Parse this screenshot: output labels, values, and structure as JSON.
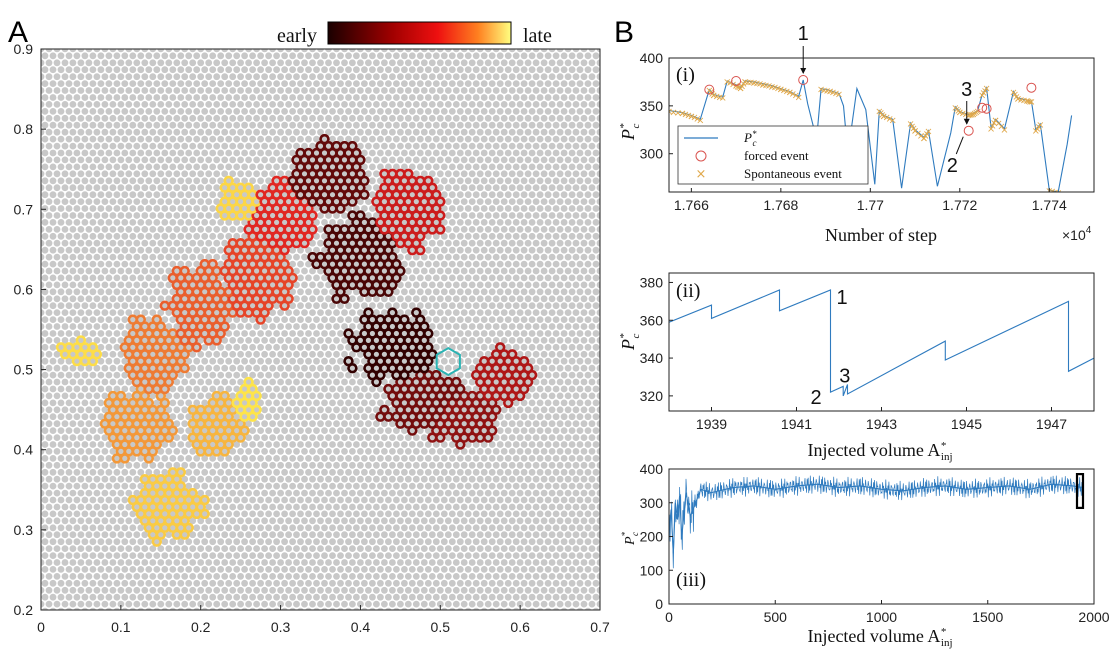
{
  "colors": {
    "grain": "#c8c8c8",
    "line": "#2f7bbf",
    "forced": "#d9534f",
    "spontaneous": "#e0a84a",
    "highlight_hex": "#2ab3b3",
    "cluster_early": "#2a0000",
    "cluster_mid": "#e02020",
    "cluster_late": "#ffe84a"
  },
  "panel_a": {
    "letter": "A",
    "colorbar": {
      "left_label": "early",
      "right_label": "late"
    },
    "x_ticks": [
      "0",
      "0.1",
      "0.2",
      "0.3",
      "0.4",
      "0.5",
      "0.6",
      "0.7"
    ],
    "y_ticks": [
      "0.2",
      "0.3",
      "0.4",
      "0.5",
      "0.6",
      "0.7",
      "0.8",
      "0.9"
    ],
    "xlim": [
      0,
      0.7
    ],
    "ylim": [
      0.2,
      0.9
    ],
    "grid_pitch": 0.01,
    "highlight_center": [
      0.51,
      0.51
    ],
    "highlight_radius": 0.012
  },
  "panel_b": {
    "letter": "B",
    "sub_i": {
      "label": "(i)",
      "ylabel": "P",
      "ylabel_sup": "*",
      "ylabel_sub": "c",
      "xlabel": "Number of step",
      "x_exponent_base": "×10",
      "x_exponent_power": "4",
      "x_ticks": [
        "1.766",
        "1.768",
        "1.77",
        "1.772",
        "1.774"
      ],
      "y_ticks": [
        "300",
        "350",
        "400"
      ],
      "annotations": [
        "1",
        "2",
        "3"
      ],
      "legend": {
        "line": "P",
        "line_sup": "*",
        "line_sub": "c",
        "forced": "forced event",
        "spontaneous": "Spontaneous event"
      }
    },
    "sub_ii": {
      "label": "(ii)",
      "ylabel": "P",
      "ylabel_sup": "*",
      "ylabel_sub": "c",
      "xlabel": "Injected volume A",
      "xlabel_sup": "*",
      "xlabel_sub": "inj",
      "x_ticks": [
        "1939",
        "1941",
        "1943",
        "1945",
        "1947"
      ],
      "y_ticks": [
        "320",
        "340",
        "360",
        "380"
      ],
      "annotations": [
        "1",
        "2",
        "3"
      ]
    },
    "sub_iii": {
      "label": "(iii)",
      "ylabel": "P",
      "ylabel_sup": "*",
      "ylabel_sub": "c",
      "xlabel": "Injected volume A",
      "xlabel_sup": "*",
      "xlabel_sub": "inj",
      "x_ticks": [
        "0",
        "500",
        "1000",
        "1500",
        "2000"
      ],
      "y_ticks": [
        "0",
        "100",
        "200",
        "300",
        "400"
      ]
    }
  },
  "chart_data": [
    {
      "type": "scatter",
      "panel": "A",
      "xlim": [
        0,
        0.7
      ],
      "ylim": [
        0.2,
        0.9
      ],
      "clusters": [
        {
          "order": 0.02,
          "center": [
            0.44,
            0.53
          ],
          "rx": 0.06,
          "ry": 0.05
        },
        {
          "order": 0.08,
          "center": [
            0.4,
            0.64
          ],
          "rx": 0.06,
          "ry": 0.06
        },
        {
          "order": 0.14,
          "center": [
            0.36,
            0.74
          ],
          "rx": 0.06,
          "ry": 0.05
        },
        {
          "order": 0.18,
          "center": [
            0.48,
            0.46
          ],
          "rx": 0.06,
          "ry": 0.04
        },
        {
          "order": 0.25,
          "center": [
            0.53,
            0.44
          ],
          "rx": 0.05,
          "ry": 0.04
        },
        {
          "order": 0.33,
          "center": [
            0.58,
            0.49
          ],
          "rx": 0.04,
          "ry": 0.04
        },
        {
          "order": 0.4,
          "center": [
            0.46,
            0.7
          ],
          "rx": 0.05,
          "ry": 0.06
        },
        {
          "order": 0.47,
          "center": [
            0.3,
            0.69
          ],
          "rx": 0.05,
          "ry": 0.05
        },
        {
          "order": 0.55,
          "center": [
            0.27,
            0.62
          ],
          "rx": 0.05,
          "ry": 0.06
        },
        {
          "order": 0.62,
          "center": [
            0.2,
            0.58
          ],
          "rx": 0.05,
          "ry": 0.06
        },
        {
          "order": 0.7,
          "center": [
            0.14,
            0.52
          ],
          "rx": 0.05,
          "ry": 0.05
        },
        {
          "order": 0.78,
          "center": [
            0.12,
            0.43
          ],
          "rx": 0.05,
          "ry": 0.05
        },
        {
          "order": 0.86,
          "center": [
            0.22,
            0.43
          ],
          "rx": 0.04,
          "ry": 0.04
        },
        {
          "order": 0.92,
          "center": [
            0.16,
            0.33
          ],
          "rx": 0.05,
          "ry": 0.05
        },
        {
          "order": 0.97,
          "center": [
            0.05,
            0.52
          ],
          "rx": 0.03,
          "ry": 0.02
        },
        {
          "order": 0.95,
          "center": [
            0.25,
            0.71
          ],
          "rx": 0.03,
          "ry": 0.03
        },
        {
          "order": 0.99,
          "center": [
            0.26,
            0.46
          ],
          "rx": 0.02,
          "ry": 0.03
        }
      ]
    },
    {
      "type": "line",
      "panel": "B(i)",
      "xlabel": "Number of step",
      "ylabel": "P_c^*",
      "xlim": [
        17655,
        17750
      ],
      "ylim": [
        260,
        400
      ],
      "series": [
        {
          "name": "P_c^*",
          "x": [
            17655,
            17658,
            17660,
            17662,
            17664,
            17665,
            17667,
            17668,
            17670,
            17671,
            17672,
            17674,
            17676,
            17678,
            17680,
            17682,
            17684,
            17685,
            17686,
            17688,
            17689,
            17691,
            17693,
            17694,
            17695,
            17697,
            17699,
            17701,
            17702,
            17703,
            17705,
            17707,
            17709,
            17710,
            17712,
            17713,
            17715,
            17718,
            17719,
            17720,
            17722,
            17723,
            17724,
            17725,
            17726,
            17727,
            17728,
            17730,
            17732,
            17733,
            17735,
            17736,
            17737,
            17738,
            17740,
            17742,
            17744,
            17745
          ],
          "values": [
            345,
            343,
            340,
            336,
            367,
            362,
            359,
            376,
            372,
            369,
            376,
            375,
            373,
            371,
            368,
            365,
            360,
            377,
            352,
            315,
            368,
            366,
            363,
            350,
            300,
            368,
            346,
            268,
            345,
            340,
            336,
            264,
            332,
            325,
            317,
            324,
            266,
            322,
            349,
            344,
            341,
            342,
            345,
            362,
            369,
            327,
            336,
            326,
            365,
            358,
            356,
            355,
            325,
            331,
            262,
            260,
            310,
            340
          ]
        }
      ],
      "forced_events": [
        [
          17664,
          367
        ],
        [
          17670,
          376
        ],
        [
          17685,
          377
        ],
        [
          17722,
          324
        ],
        [
          17725,
          348
        ],
        [
          17726,
          347
        ],
        [
          17736,
          369
        ]
      ],
      "annotations": [
        {
          "text": "1",
          "x": 17685,
          "y": 377
        },
        {
          "text": "2",
          "x": 17721,
          "y": 324
        },
        {
          "text": "3",
          "x": 17722,
          "y": 324
        }
      ]
    },
    {
      "type": "line",
      "panel": "B(ii)",
      "xlabel": "Injected volume A_inj^*",
      "ylabel": "P_c^*",
      "xlim": [
        1938,
        1948
      ],
      "ylim": [
        312,
        385
      ],
      "series": [
        {
          "name": "P_c^*",
          "x": [
            1938,
            1939,
            1939,
            1940.6,
            1940.6,
            1941.8,
            1941.8,
            1942.1,
            1942.1,
            1942.2,
            1942.2,
            1944.5,
            1944.5,
            1947.4,
            1947.4,
            1948
          ],
          "values": [
            359,
            368,
            361,
            376,
            365,
            376,
            322,
            325,
            320,
            326,
            321,
            349,
            339,
            370,
            333,
            340
          ]
        }
      ],
      "annotations": [
        {
          "text": "1",
          "x": 1941.8,
          "y": 376
        },
        {
          "text": "2",
          "x": 1941.8,
          "y": 322
        },
        {
          "text": "3",
          "x": 1942.1,
          "y": 325
        }
      ]
    },
    {
      "type": "line",
      "panel": "B(iii)",
      "xlabel": "Injected volume A_inj^*",
      "ylabel": "P_c^*",
      "xlim": [
        0,
        2000
      ],
      "ylim": [
        0,
        400
      ],
      "series": [
        {
          "name": "P_c^*",
          "x": [
            0,
            10,
            20,
            30,
            40,
            50,
            60,
            80,
            100,
            150,
            200,
            300,
            400,
            500,
            600,
            700,
            800,
            900,
            1000,
            1100,
            1200,
            1300,
            1400,
            1500,
            1600,
            1700,
            1800,
            1900,
            1950
          ],
          "values": [
            210,
            280,
            150,
            300,
            250,
            320,
            200,
            330,
            260,
            340,
            330,
            345,
            350,
            340,
            350,
            355,
            345,
            350,
            340,
            335,
            345,
            350,
            340,
            345,
            350,
            340,
            355,
            350,
            345
          ]
        }
      ],
      "highlight_range": [
        1920,
        1948
      ]
    }
  ]
}
